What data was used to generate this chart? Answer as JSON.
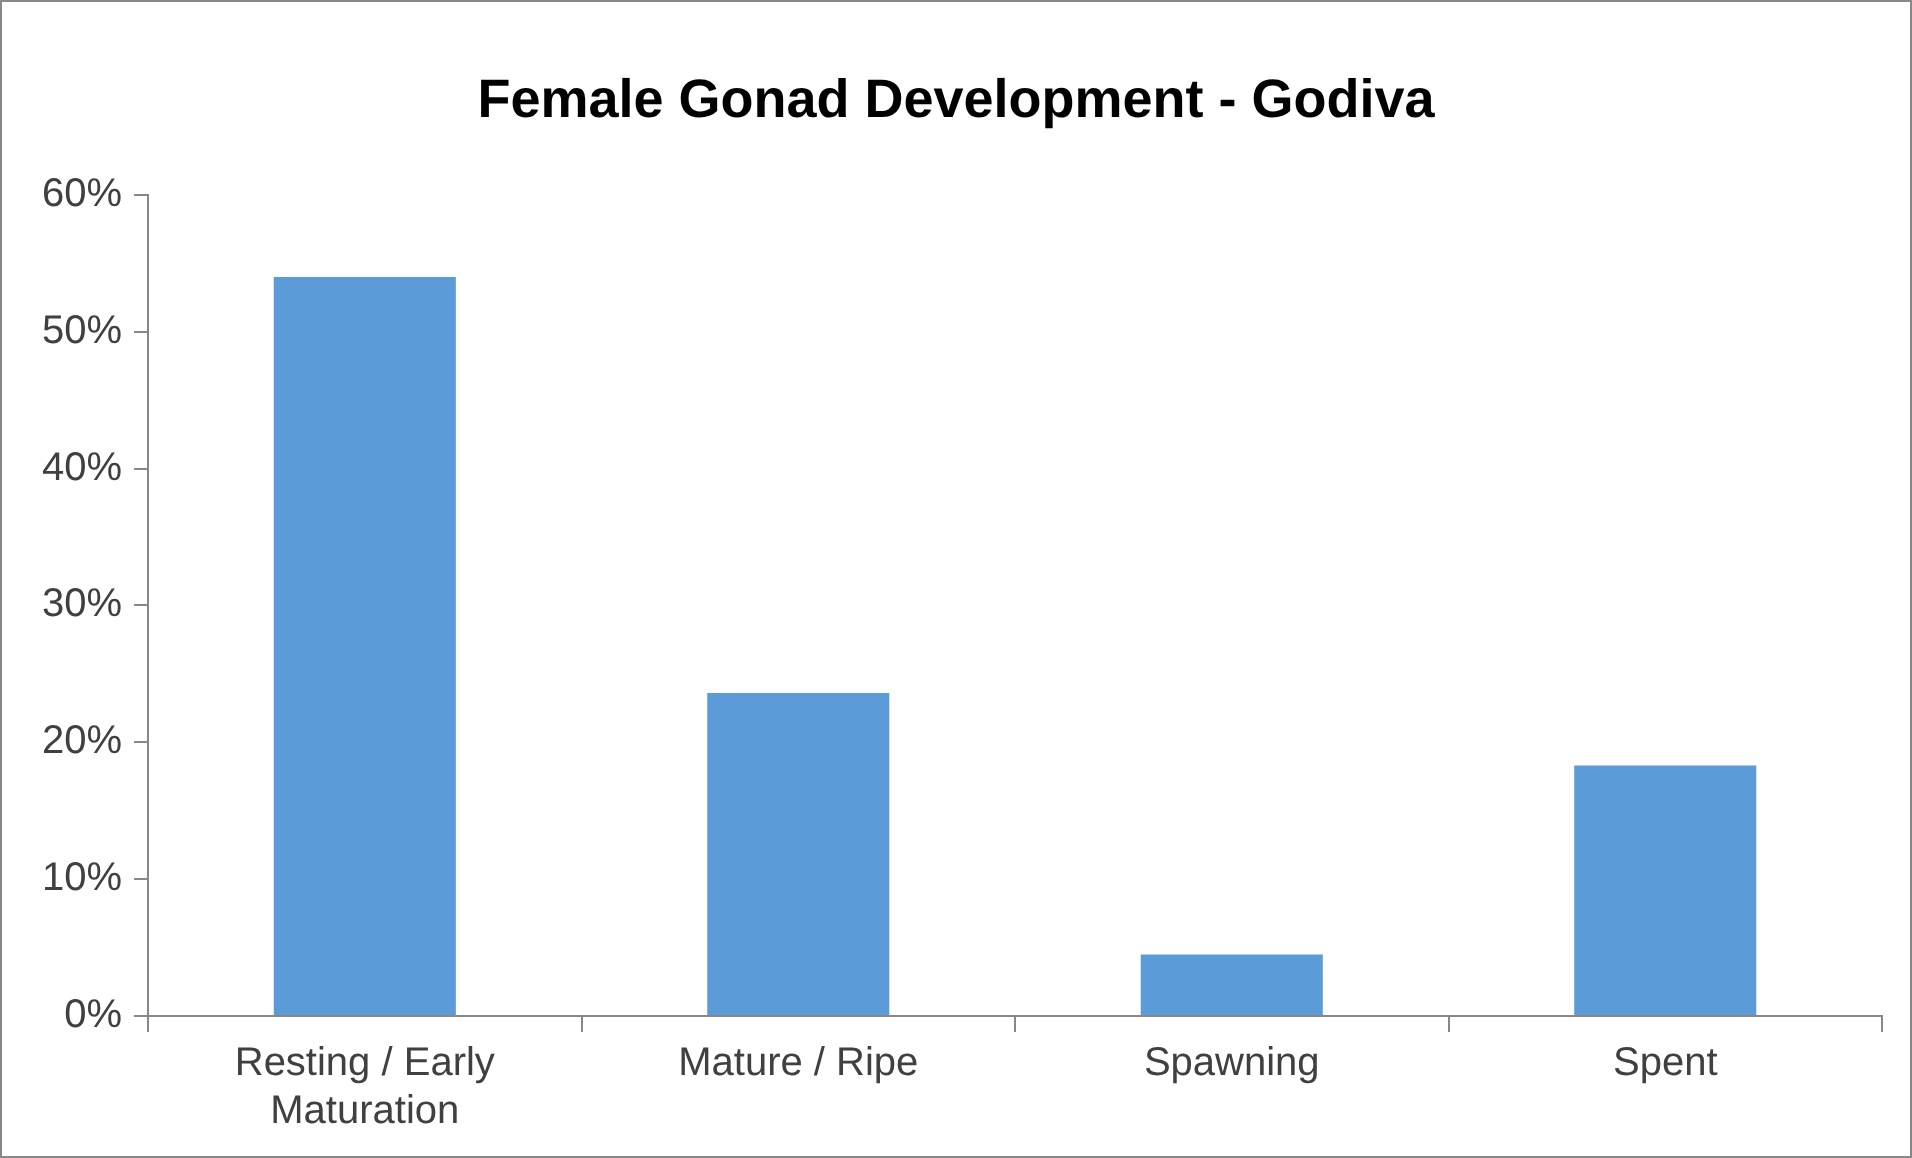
{
  "chart_data": {
    "type": "bar",
    "title": "Female Gonad Development - Godiva",
    "categories": [
      "Resting / Early Maturation",
      "Mature / Ripe",
      "Spawning",
      "Spent"
    ],
    "values": [
      54,
      23.6,
      4.5,
      18.3
    ],
    "color": "#5a9bd8",
    "ylim": [
      0,
      60
    ],
    "yticks": [
      {
        "value": 0,
        "label": "0%"
      },
      {
        "value": 10,
        "label": "10%"
      },
      {
        "value": 20,
        "label": "20%"
      },
      {
        "value": 30,
        "label": "30%"
      },
      {
        "value": 40,
        "label": "40%"
      },
      {
        "value": 50,
        "label": "50%"
      },
      {
        "value": 60,
        "label": "60%"
      }
    ],
    "grid": false,
    "legend": false
  }
}
